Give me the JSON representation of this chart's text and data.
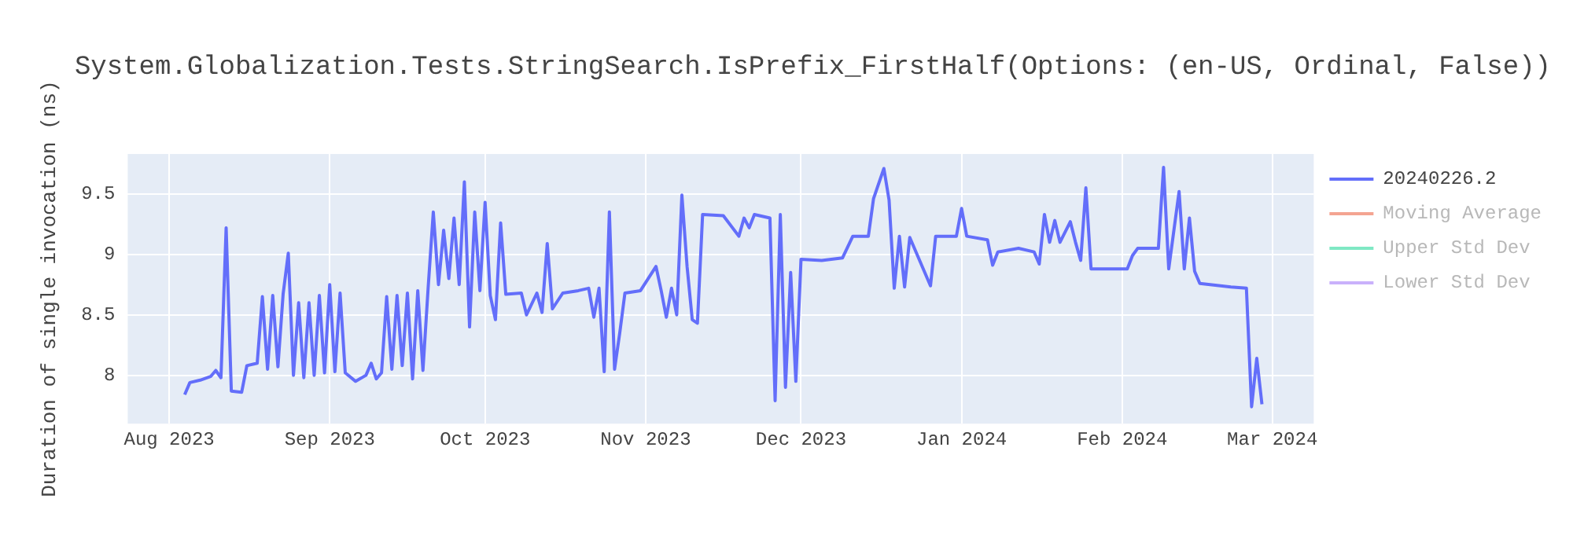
{
  "chart_data": {
    "type": "line",
    "title": "System.Globalization.Tests.StringSearch.IsPrefix_FirstHalf(Options: (en-US, Ordinal, False))",
    "ylabel": "Duration of single invocation (ns)",
    "x": [
      "2023-08-04",
      "2023-08-05",
      "2023-08-07",
      "2023-08-09",
      "2023-08-10",
      "2023-08-11",
      "2023-08-12",
      "2023-08-13",
      "2023-08-15",
      "2023-08-16",
      "2023-08-18",
      "2023-08-19",
      "2023-08-20",
      "2023-08-21",
      "2023-08-22",
      "2023-08-23",
      "2023-08-24",
      "2023-08-25",
      "2023-08-26",
      "2023-08-27",
      "2023-08-28",
      "2023-08-29",
      "2023-08-30",
      "2023-08-31",
      "2023-09-01",
      "2023-09-02",
      "2023-09-03",
      "2023-09-04",
      "2023-09-06",
      "2023-09-08",
      "2023-09-09",
      "2023-09-10",
      "2023-09-11",
      "2023-09-12",
      "2023-09-13",
      "2023-09-14",
      "2023-09-15",
      "2023-09-16",
      "2023-09-17",
      "2023-09-18",
      "2023-09-19",
      "2023-09-20",
      "2023-09-21",
      "2023-09-22",
      "2023-09-23",
      "2023-09-24",
      "2023-09-25",
      "2023-09-26",
      "2023-09-27",
      "2023-09-28",
      "2023-09-29",
      "2023-09-30",
      "2023-10-01",
      "2023-10-02",
      "2023-10-03",
      "2023-10-04",
      "2023-10-05",
      "2023-10-08",
      "2023-10-09",
      "2023-10-11",
      "2023-10-12",
      "2023-10-13",
      "2023-10-14",
      "2023-10-16",
      "2023-10-19",
      "2023-10-21",
      "2023-10-22",
      "2023-10-23",
      "2023-10-24",
      "2023-10-25",
      "2023-10-26",
      "2023-10-27",
      "2023-10-28",
      "2023-10-31",
      "2023-11-03",
      "2023-11-04",
      "2023-11-05",
      "2023-11-06",
      "2023-11-07",
      "2023-11-08",
      "2023-11-09",
      "2023-11-10",
      "2023-11-11",
      "2023-11-12",
      "2023-11-16",
      "2023-11-19",
      "2023-11-20",
      "2023-11-21",
      "2023-11-22",
      "2023-11-25",
      "2023-11-26",
      "2023-11-27",
      "2023-11-28",
      "2023-11-29",
      "2023-11-30",
      "2023-12-01",
      "2023-12-05",
      "2023-12-09",
      "2023-12-11",
      "2023-12-14",
      "2023-12-15",
      "2023-12-17",
      "2023-12-18",
      "2023-12-19",
      "2023-12-20",
      "2023-12-21",
      "2023-12-22",
      "2023-12-26",
      "2023-12-27",
      "2023-12-31",
      "2024-01-01",
      "2024-01-02",
      "2024-01-06",
      "2024-01-07",
      "2024-01-08",
      "2024-01-12",
      "2024-01-15",
      "2024-01-16",
      "2024-01-17",
      "2024-01-18",
      "2024-01-19",
      "2024-01-20",
      "2024-01-22",
      "2024-01-23",
      "2024-01-24",
      "2024-01-25",
      "2024-01-26",
      "2024-02-02",
      "2024-02-03",
      "2024-02-04",
      "2024-02-08",
      "2024-02-09",
      "2024-02-10",
      "2024-02-12",
      "2024-02-13",
      "2024-02-14",
      "2024-02-15",
      "2024-02-16",
      "2024-02-22",
      "2024-02-25",
      "2024-02-26",
      "2024-02-27",
      "2024-02-28"
    ],
    "series": [
      {
        "name": "20240226.2",
        "color": "#636efa",
        "values": [
          7.84,
          7.94,
          7.96,
          7.99,
          8.04,
          7.98,
          9.22,
          7.87,
          7.86,
          8.08,
          8.1,
          8.65,
          8.05,
          8.66,
          8.07,
          8.67,
          9.01,
          8.0,
          8.6,
          7.98,
          8.6,
          8.0,
          8.66,
          8.02,
          8.75,
          8.03,
          8.68,
          8.02,
          7.95,
          8.0,
          8.1,
          7.97,
          8.02,
          8.65,
          8.05,
          8.66,
          8.08,
          8.68,
          7.97,
          8.7,
          8.04,
          8.72,
          9.35,
          8.75,
          9.2,
          8.8,
          9.3,
          8.75,
          9.6,
          8.4,
          9.35,
          8.7,
          9.43,
          8.66,
          8.46,
          9.26,
          8.67,
          8.68,
          8.5,
          8.68,
          8.52,
          9.09,
          8.55,
          8.68,
          8.7,
          8.72,
          8.48,
          8.72,
          8.03,
          9.35,
          8.05,
          8.35,
          8.68,
          8.7,
          8.9,
          8.7,
          8.48,
          8.72,
          8.5,
          9.49,
          8.9,
          8.46,
          8.43,
          9.33,
          9.32,
          9.15,
          9.3,
          9.22,
          9.33,
          9.3,
          7.79,
          9.33,
          7.9,
          8.85,
          7.95,
          8.96,
          8.95,
          8.97,
          9.15,
          9.15,
          9.46,
          9.71,
          9.45,
          8.72,
          9.15,
          8.73,
          9.14,
          8.74,
          9.15,
          9.15,
          9.38,
          9.15,
          9.12,
          8.91,
          9.02,
          9.05,
          9.02,
          8.92,
          9.33,
          9.1,
          9.28,
          9.1,
          9.27,
          9.1,
          8.95,
          9.55,
          8.88,
          8.88,
          8.99,
          9.05,
          9.05,
          9.72,
          8.88,
          9.52,
          8.88,
          9.3,
          8.86,
          8.76,
          8.73,
          8.72,
          7.74,
          8.14,
          7.76
        ]
      },
      {
        "name": "Moving Average",
        "color": "#f4a491",
        "values": [
          null,
          null,
          null,
          null,
          null,
          null,
          null,
          null,
          null,
          null,
          null,
          null,
          null,
          null,
          null,
          null,
          null,
          null,
          null,
          null,
          null,
          null,
          null,
          null,
          null,
          null,
          null,
          null,
          null,
          null,
          null,
          null,
          null,
          null,
          null,
          null,
          null,
          null,
          null,
          null,
          null,
          null,
          null,
          null,
          null,
          null,
          null,
          null,
          null,
          null,
          null,
          null,
          null,
          null,
          null,
          null,
          null,
          null,
          null,
          null,
          null,
          null,
          null,
          null,
          null,
          null,
          null,
          null,
          null,
          null,
          null,
          null,
          null,
          null,
          null,
          null,
          null,
          null,
          null,
          null,
          null,
          null,
          null,
          null,
          null,
          null,
          null,
          null,
          null,
          null,
          null,
          null,
          null,
          null,
          null,
          null,
          null,
          null,
          null,
          null,
          null,
          null,
          null,
          null,
          null,
          null,
          null,
          null,
          null,
          null,
          null,
          null,
          null,
          null,
          null,
          null,
          null,
          null,
          null,
          null,
          null,
          null,
          null,
          null,
          null,
          null,
          null,
          null,
          null,
          null,
          null,
          null,
          null,
          null,
          null,
          null,
          null,
          null,
          null,
          null,
          null,
          null,
          null
        ]
      },
      {
        "name": "Upper Std Dev",
        "color": "#7fe8c4",
        "values": [
          null,
          null,
          null,
          null,
          null,
          null,
          null,
          null,
          null,
          null,
          null,
          null,
          null,
          null,
          null,
          null,
          null,
          null,
          null,
          null,
          null,
          null,
          null,
          null,
          null,
          null,
          null,
          null,
          null,
          null,
          null,
          null,
          null,
          null,
          null,
          null,
          null,
          null,
          null,
          null,
          null,
          null,
          null,
          null,
          null,
          null,
          null,
          null,
          null,
          null,
          null,
          null,
          null,
          null,
          null,
          null,
          null,
          null,
          null,
          null,
          null,
          null,
          null,
          null,
          null,
          null,
          null,
          null,
          null,
          null,
          null,
          null,
          null,
          null,
          null,
          null,
          null,
          null,
          null,
          null,
          null,
          null,
          null,
          null,
          null,
          null,
          null,
          null,
          null,
          null,
          null,
          null,
          null,
          null,
          null,
          null,
          null,
          null,
          null,
          null,
          null,
          null,
          null,
          null,
          null,
          null,
          null,
          null,
          null,
          null,
          null,
          null,
          null,
          null,
          null,
          null,
          null,
          null,
          null,
          null,
          null,
          null,
          null,
          null,
          null,
          null,
          null,
          null,
          null,
          null,
          null,
          null,
          null,
          null,
          null,
          null,
          null,
          null,
          null,
          null,
          null,
          null,
          null
        ]
      },
      {
        "name": "Lower Std Dev",
        "color": "#c9b1fb",
        "values": [
          null,
          null,
          null,
          null,
          null,
          null,
          null,
          null,
          null,
          null,
          null,
          null,
          null,
          null,
          null,
          null,
          null,
          null,
          null,
          null,
          null,
          null,
          null,
          null,
          null,
          null,
          null,
          null,
          null,
          null,
          null,
          null,
          null,
          null,
          null,
          null,
          null,
          null,
          null,
          null,
          null,
          null,
          null,
          null,
          null,
          null,
          null,
          null,
          null,
          null,
          null,
          null,
          null,
          null,
          null,
          null,
          null,
          null,
          null,
          null,
          null,
          null,
          null,
          null,
          null,
          null,
          null,
          null,
          null,
          null,
          null,
          null,
          null,
          null,
          null,
          null,
          null,
          null,
          null,
          null,
          null,
          null,
          null,
          null,
          null,
          null,
          null,
          null,
          null,
          null,
          null,
          null,
          null,
          null,
          null,
          null,
          null,
          null,
          null,
          null,
          null,
          null,
          null,
          null,
          null,
          null,
          null,
          null,
          null,
          null,
          null,
          null,
          null,
          null,
          null,
          null,
          null,
          null,
          null,
          null,
          null,
          null,
          null,
          null,
          null,
          null,
          null,
          null,
          null,
          null,
          null,
          null,
          null,
          null,
          null,
          null,
          null,
          null,
          null,
          null,
          null,
          null,
          null
        ]
      }
    ],
    "xlim": [
      "2023-07-24",
      "2024-03-09"
    ],
    "xticks": [
      {
        "value": "2023-08-01",
        "label": "Aug 2023"
      },
      {
        "value": "2023-09-01",
        "label": "Sep 2023"
      },
      {
        "value": "2023-10-01",
        "label": "Oct 2023"
      },
      {
        "value": "2023-11-01",
        "label": "Nov 2023"
      },
      {
        "value": "2023-12-01",
        "label": "Dec 2023"
      },
      {
        "value": "2024-01-01",
        "label": "Jan 2024"
      },
      {
        "value": "2024-02-01",
        "label": "Feb 2024"
      },
      {
        "value": "2024-03-01",
        "label": "Mar 2024"
      }
    ],
    "ylim": [
      7.6,
      9.83
    ],
    "yticks": [
      8,
      8.5,
      9,
      9.5
    ],
    "grid": true,
    "legend": "right",
    "marker": "none",
    "line_style": "solid"
  }
}
